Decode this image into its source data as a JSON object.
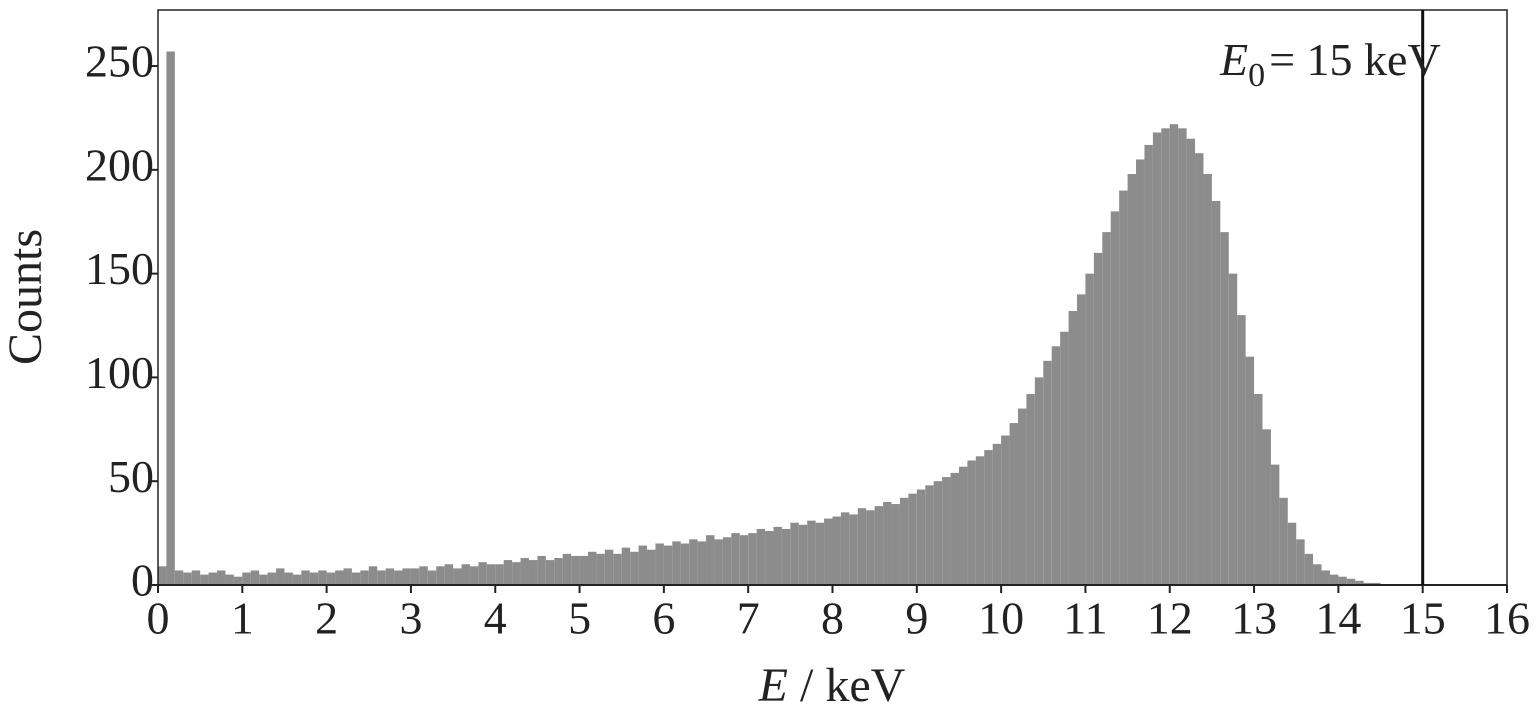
{
  "chart_data": {
    "type": "histogram",
    "ylabel": "Counts",
    "xlabel_symbol": "E",
    "xlabel_unit": "/ keV",
    "annotation": {
      "symbol": "E",
      "subscript": "0",
      "text": "= 15 keV",
      "x": 15
    },
    "color": "#8c8c8c",
    "xlim": [
      0,
      16
    ],
    "xticks": [
      0,
      1,
      2,
      3,
      4,
      5,
      6,
      7,
      8,
      9,
      10,
      11,
      12,
      13,
      14,
      15,
      16
    ],
    "ylim": [
      0,
      277
    ],
    "yticks": [
      0,
      50,
      100,
      150,
      200,
      250
    ],
    "bins": [
      0,
      0.1,
      0.2,
      0.3,
      0.4,
      0.5,
      0.6,
      0.7,
      0.8,
      0.9,
      1,
      1.1,
      1.2,
      1.3,
      1.4,
      1.5,
      1.6,
      1.7,
      1.8,
      1.9,
      2,
      2.1,
      2.2,
      2.3,
      2.4,
      2.5,
      2.6,
      2.7,
      2.8,
      2.9,
      3,
      3.1,
      3.2,
      3.3,
      3.4,
      3.5,
      3.6,
      3.7,
      3.8,
      3.9,
      4,
      4.1,
      4.2,
      4.3,
      4.4,
      4.5,
      4.6,
      4.7,
      4.8,
      4.9,
      5,
      5.1,
      5.2,
      5.3,
      5.4,
      5.5,
      5.6,
      5.7,
      5.8,
      5.9,
      6,
      6.1,
      6.2,
      6.3,
      6.4,
      6.5,
      6.6,
      6.7,
      6.8,
      6.9,
      7,
      7.1,
      7.2,
      7.3,
      7.4,
      7.5,
      7.6,
      7.7,
      7.8,
      7.9,
      8,
      8.1,
      8.2,
      8.3,
      8.4,
      8.5,
      8.6,
      8.7,
      8.8,
      8.9,
      9,
      9.1,
      9.2,
      9.3,
      9.4,
      9.5,
      9.6,
      9.7,
      9.8,
      9.9,
      10,
      10.1,
      10.2,
      10.3,
      10.4,
      10.5,
      10.6,
      10.7,
      10.8,
      10.9,
      11,
      11.1,
      11.2,
      11.3,
      11.4,
      11.5,
      11.6,
      11.7,
      11.8,
      11.9,
      12,
      12.1,
      12.2,
      12.3,
      12.4,
      12.5,
      12.6,
      12.7,
      12.8,
      12.9,
      13,
      13.1,
      13.2,
      13.3,
      13.4,
      13.5,
      13.6,
      13.7,
      13.8,
      13.9,
      14,
      14.1,
      14.2,
      14.3,
      14.4,
      14.5,
      14.6
    ],
    "values": [
      9,
      257,
      7,
      6,
      7,
      5,
      6,
      7,
      5,
      4,
      6,
      7,
      5,
      6,
      8,
      6,
      5,
      7,
      6,
      7,
      6,
      7,
      8,
      6,
      7,
      9,
      7,
      8,
      7,
      8,
      8,
      9,
      7,
      9,
      10,
      8,
      10,
      9,
      11,
      10,
      10,
      12,
      11,
      13,
      12,
      14,
      12,
      13,
      15,
      14,
      14,
      16,
      15,
      17,
      15,
      18,
      16,
      19,
      17,
      20,
      19,
      21,
      20,
      22,
      21,
      24,
      22,
      23,
      25,
      24,
      25,
      27,
      26,
      28,
      27,
      30,
      29,
      31,
      30,
      32,
      33,
      35,
      34,
      37,
      36,
      38,
      40,
      39,
      42,
      44,
      46,
      48,
      50,
      52,
      54,
      57,
      60,
      62,
      65,
      68,
      72,
      78,
      85,
      92,
      100,
      108,
      115,
      122,
      132,
      140,
      150,
      160,
      170,
      180,
      190,
      198,
      205,
      212,
      218,
      220,
      222,
      220,
      215,
      208,
      198,
      185,
      170,
      150,
      130,
      110,
      92,
      75,
      58,
      42,
      30,
      22,
      15,
      10,
      7,
      5,
      4,
      3,
      2,
      1,
      1,
      0
    ]
  }
}
